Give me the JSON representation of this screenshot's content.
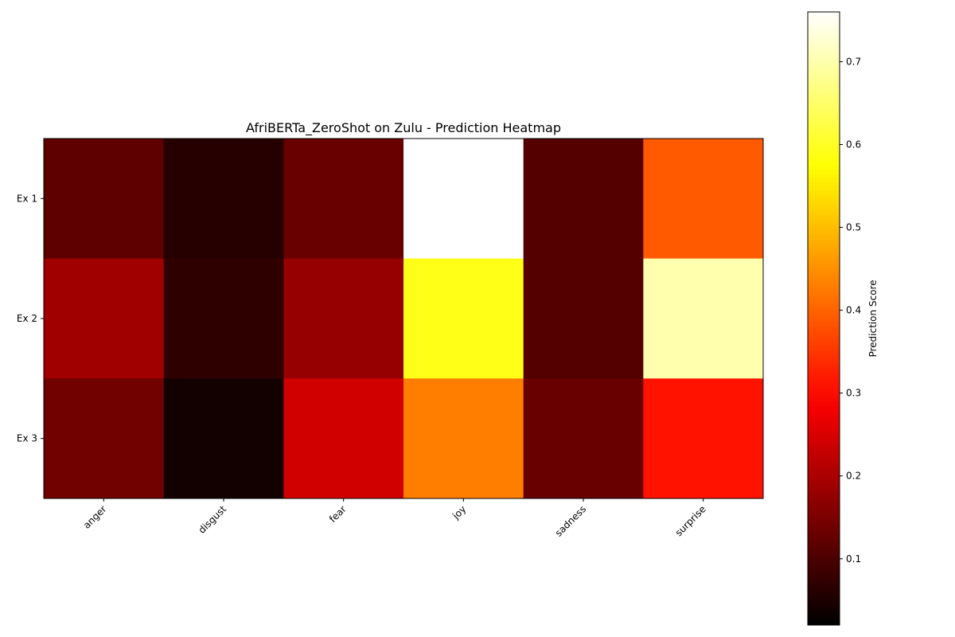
{
  "chart_data": {
    "type": "heatmap",
    "title": "AfriBERTa_ZeroShot on Zulu - Prediction Heatmap",
    "xlabel": "",
    "ylabel": "",
    "x_categories": [
      "anger",
      "disgust",
      "fear",
      "joy",
      "sadness",
      "surprise"
    ],
    "y_categories": [
      "Ex 1",
      "Ex 2",
      "Ex 3"
    ],
    "values": [
      [
        0.12,
        0.06,
        0.13,
        0.76,
        0.11,
        0.39
      ],
      [
        0.19,
        0.07,
        0.18,
        0.59,
        0.11,
        0.7
      ],
      [
        0.14,
        0.04,
        0.24,
        0.43,
        0.13,
        0.31
      ]
    ],
    "colormap": "hot",
    "colorbar": {
      "label": "Prediction Score",
      "min": 0.02,
      "max": 0.76,
      "ticks": [
        0.1,
        0.2,
        0.3,
        0.4,
        0.5,
        0.6,
        0.7
      ],
      "tick_labels": [
        "0.1",
        "0.2",
        "0.3",
        "0.4",
        "0.5",
        "0.6",
        "0.7"
      ]
    },
    "grid": false
  }
}
